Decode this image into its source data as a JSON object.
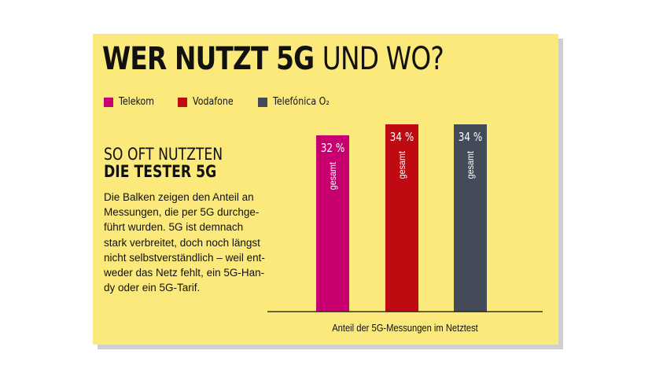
{
  "title": {
    "bold": "WER NUTZT 5G",
    "light": "UND WO?"
  },
  "legend": [
    {
      "label": "Telekom",
      "color": "#c8006f"
    },
    {
      "label": "Vodafone",
      "color": "#c00a12"
    },
    {
      "label": "Telefónica O₂",
      "color": "#434a58"
    }
  ],
  "subtitle": {
    "line1": "SO OFT NUTZTEN",
    "line2": "DIE TESTER 5G"
  },
  "description": "Die Balken zeigen den Anteil an\nMessungen, die per 5G durchge-\nführt wurden. 5G ist demnach\nstark verbreitet, doch noch längst\nnicht selbstverständlich – weil ent-\nweder das Netz fehlt, ein 5G-Han-\ndy oder ein 5G-Tarif.",
  "chart_data": {
    "type": "bar",
    "categories": [
      "Telekom",
      "Vodafone",
      "Telefónica O₂"
    ],
    "values": [
      32,
      34,
      34
    ],
    "value_labels": [
      "32 %",
      "34 %",
      "34 %"
    ],
    "bar_label": "gesamt",
    "xlabel": "Anteil der 5G-Messungen im Netztest",
    "ylabel": "",
    "title": "WER NUTZT 5G UND WO?",
    "colors": [
      "#c8006f",
      "#c00a12",
      "#434a58"
    ],
    "legend_position": "top-left",
    "grid": false
  }
}
